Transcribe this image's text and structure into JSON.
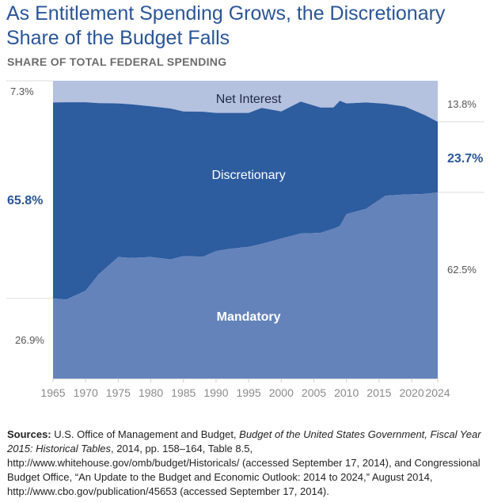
{
  "title": "As Entitlement Spending Grows, the Discretionary Share of the Budget Falls",
  "subtitle": "SHARE OF TOTAL FEDERAL SPENDING",
  "colors": {
    "mandatory": "#6483ba",
    "discretionary": "#2d5c9f",
    "net_interest": "#b4c1df",
    "title": "#2a5597",
    "axis_text": "#8a8a8a",
    "left_label": "#2a5597",
    "right_label": "#2a5597"
  },
  "chart_data": {
    "type": "area",
    "stacked": true,
    "x": [
      1965,
      1967,
      1970,
      1972,
      1975,
      1977,
      1980,
      1983,
      1985,
      1988,
      1990,
      1992,
      1995,
      1997,
      2000,
      2003,
      2006,
      2008,
      2009,
      2010,
      2013,
      2016,
      2019,
      2022,
      2024
    ],
    "series": [
      {
        "name": "Mandatory",
        "values": [
          26.9,
          26.5,
          29.5,
          35.0,
          40.8,
          40.5,
          40.8,
          40.0,
          41.1,
          40.9,
          42.8,
          43.5,
          44.2,
          45.2,
          47.0,
          48.7,
          48.9,
          50.3,
          51.2,
          55.2,
          57.0,
          61.4,
          61.8,
          62.0,
          62.5
        ]
      },
      {
        "name": "Discretionary",
        "values": [
          65.8,
          66.3,
          63.3,
          57.5,
          51.6,
          51.6,
          50.6,
          50.7,
          48.6,
          48.7,
          46.4,
          45.7,
          45.0,
          45.7,
          42.7,
          44.3,
          42.1,
          40.7,
          42.1,
          37.2,
          35.7,
          30.9,
          29.5,
          26.5,
          23.7
        ]
      },
      {
        "name": "Net Interest",
        "values": [
          7.3,
          7.2,
          7.2,
          7.5,
          7.6,
          7.9,
          8.6,
          9.3,
          10.3,
          10.4,
          10.8,
          10.8,
          10.8,
          9.1,
          10.3,
          7.0,
          9.0,
          9.0,
          6.7,
          7.6,
          7.3,
          7.7,
          8.7,
          11.5,
          13.8
        ]
      }
    ],
    "ylim": [
      0,
      100
    ],
    "x_ticks": [
      "1965",
      "1970",
      "1975",
      "1980",
      "1985",
      "1990",
      "1995",
      "2000",
      "2005",
      "2010",
      "2015",
      "2020",
      "2024"
    ],
    "area_labels": [
      "Net Interest",
      "Discretionary",
      "Mandatory"
    ],
    "start_labels": {
      "net_interest": "7.3%",
      "discretionary": "65.8%",
      "mandatory": "26.9%"
    },
    "end_labels": {
      "net_interest": "13.8%",
      "discretionary": "23.7%",
      "mandatory": "62.5%"
    }
  },
  "sources": {
    "label": "Sources:",
    "text1": " U.S. Office of Management and Budget, ",
    "italic1": "Budget of the United States Government, Fiscal Year 2015: Historical Tables",
    "text2": ", 2014, pp. 158–164, Table 8.5, http://www.whitehouse.gov/omb/budget/Historicals/ (accessed September 17, 2014), and Congressional Budget Office, “An Update to the Budget and Economic Outlook: 2014 to 2024,” August 2014, http://www.cbo.gov/publication/45653 (accessed September 17, 2014)."
  }
}
